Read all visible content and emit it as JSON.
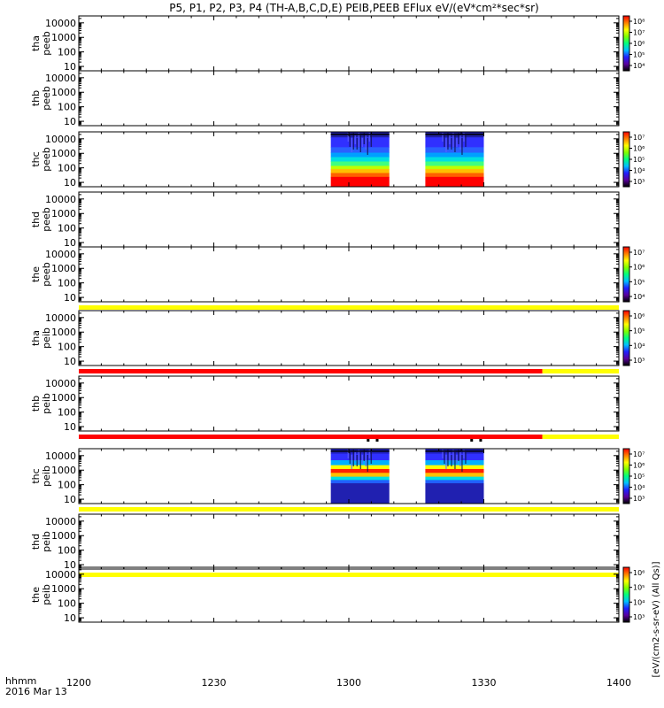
{
  "title": "P5, P1, P2, P3, P4 (TH-A,B,C,D,E) PEIB,PEEB EFlux eV/(eV*cm²*sec*sr)",
  "colors": {
    "status_yellow": "#ffff00",
    "status_red": "#ff0000",
    "axis": "#000000",
    "background": "#ffffff"
  },
  "chart_data": {
    "type": "heatmap",
    "x_axis": {
      "ticks": [
        "1200",
        "1230",
        "1300",
        "1330",
        "1400"
      ],
      "tick_minutes": [
        0,
        30,
        60,
        90,
        120
      ],
      "range_minutes": [
        0,
        120
      ],
      "label_line1": "hhmm",
      "label_line2": "2016 Mar 13"
    },
    "y_scale": "log",
    "y_ticks": [
      "10",
      "100",
      "1000",
      "10000"
    ],
    "y_range": [
      5,
      30000
    ],
    "colorscale": [
      "#000000",
      "#5a00a0",
      "#2020ff",
      "#00c0ff",
      "#00ff80",
      "#80ff00",
      "#ffff00",
      "#ff8000",
      "#ff0000"
    ],
    "data_intervals_minutes": [
      [
        56,
        69
      ],
      [
        77,
        90
      ]
    ],
    "panels": [
      {
        "name_line1": "tha",
        "name_line2": "peeb",
        "has_data": false,
        "colorbar": {
          "tick_labels": [
            "10⁸",
            "10⁷",
            "10⁶",
            "10⁵",
            "10⁴"
          ]
        },
        "status_bar": null
      },
      {
        "name_line1": "thb",
        "name_line2": "peeb",
        "has_data": false,
        "colorbar": null,
        "status_bar": null
      },
      {
        "name_line1": "thc",
        "name_line2": "peeb",
        "has_data": true,
        "pattern": "electron",
        "colorbar": {
          "tick_labels": [
            "10⁷",
            "10⁶",
            "10⁵",
            "10⁴",
            "10³"
          ]
        },
        "status_bar": null
      },
      {
        "name_line1": "thd",
        "name_line2": "peeb",
        "has_data": false,
        "colorbar": null,
        "status_bar": null
      },
      {
        "name_line1": "the",
        "name_line2": "peeb",
        "has_data": false,
        "colorbar": {
          "tick_labels": [
            "10⁷",
            "10⁶",
            "10⁵",
            "10⁴"
          ]
        },
        "status_bar": [
          {
            "from": 0,
            "to": 120,
            "status": "yellow"
          }
        ]
      },
      {
        "name_line1": "tha",
        "name_line2": "peib",
        "has_data": false,
        "colorbar": {
          "tick_labels": [
            "10⁶",
            "10⁵",
            "10⁴",
            "10³"
          ]
        },
        "status_bar": [
          {
            "from": 0,
            "to": 103,
            "status": "red"
          },
          {
            "from": 103,
            "to": 120,
            "status": "yellow"
          }
        ]
      },
      {
        "name_line1": "thb",
        "name_line2": "peib",
        "has_data": false,
        "colorbar": null,
        "status_bar": [
          {
            "from": 0,
            "to": 103,
            "status": "red"
          },
          {
            "from": 103,
            "to": 120,
            "status": "yellow"
          }
        ]
      },
      {
        "name_line1": "thc",
        "name_line2": "peib",
        "has_data": true,
        "pattern": "ion",
        "colorbar": {
          "tick_labels": [
            "10⁷",
            "10⁶",
            "10⁵",
            "10⁴",
            "10³"
          ]
        },
        "status_bar": [
          {
            "from": 0,
            "to": 120,
            "status": "yellow"
          }
        ]
      },
      {
        "name_line1": "thd",
        "name_line2": "peib",
        "has_data": false,
        "colorbar": null,
        "status_bar": [
          {
            "from": 0,
            "to": 120,
            "status": "yellow"
          }
        ]
      },
      {
        "name_line1": "the",
        "name_line2": "peib",
        "has_data": false,
        "colorbar": {
          "tick_labels": [
            "10⁶",
            "10⁵",
            "10⁴",
            "10³"
          ]
        },
        "status_bar": null
      }
    ],
    "colorbar_label": "[eV/(cm2-s-sr-eV) (All Qs)]"
  }
}
